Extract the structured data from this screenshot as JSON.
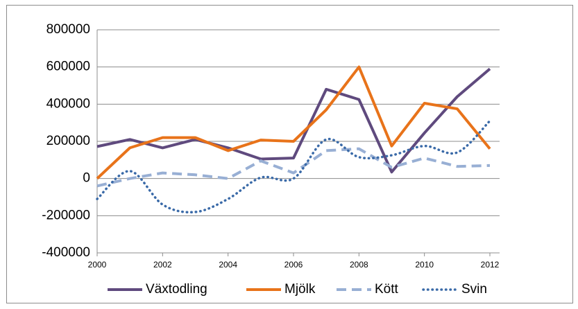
{
  "chart_data": {
    "type": "line",
    "x": [
      2000,
      2001,
      2002,
      2003,
      2004,
      2005,
      2006,
      2007,
      2008,
      2009,
      2010,
      2011,
      2012
    ],
    "xlim": [
      2000,
      2012
    ],
    "xticks": [
      2000,
      2002,
      2004,
      2006,
      2008,
      2010,
      2012
    ],
    "ylim": [
      -400000,
      800000
    ],
    "yticks": [
      -400000,
      -200000,
      0,
      200000,
      400000,
      600000,
      800000
    ],
    "grid": true,
    "legend": "bottom",
    "series": [
      {
        "name": "Växtodling",
        "color": "#5f4a7e",
        "style": "solid",
        "values": [
          172000,
          210000,
          165000,
          210000,
          165000,
          105000,
          110000,
          480000,
          425000,
          35000,
          245000,
          440000,
          590000
        ]
      },
      {
        "name": "Mjölk",
        "color": "#e8731a",
        "style": "solid",
        "values": [
          0,
          165000,
          220000,
          220000,
          150000,
          207000,
          200000,
          370000,
          600000,
          175000,
          405000,
          375000,
          160000
        ]
      },
      {
        "name": "Kött",
        "color": "#98afd4",
        "style": "dashed",
        "values": [
          -40000,
          0,
          30000,
          20000,
          0,
          95000,
          30000,
          150000,
          160000,
          60000,
          110000,
          65000,
          70000
        ]
      },
      {
        "name": "Svin",
        "color": "#3a6aa8",
        "style": "dotted",
        "smooth": true,
        "values": [
          -110000,
          40000,
          -140000,
          -180000,
          -110000,
          5000,
          0,
          210000,
          115000,
          125000,
          175000,
          140000,
          310000
        ]
      }
    ]
  }
}
